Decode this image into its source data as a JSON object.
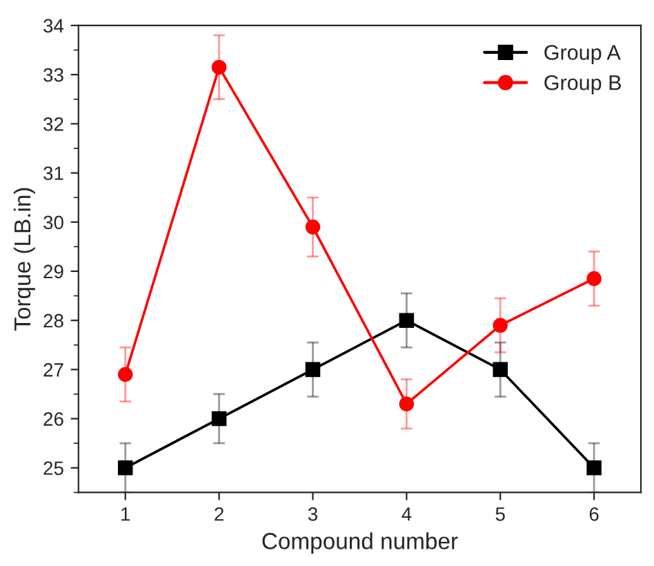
{
  "chart_data": {
    "type": "line",
    "xlabel": "Compound number",
    "ylabel": "Torque (LB.in)",
    "x": [
      1,
      2,
      3,
      4,
      5,
      6
    ],
    "series": [
      {
        "name": "Group A",
        "color": "#000000",
        "marker": "square",
        "values": [
          25,
          26,
          27,
          28,
          27,
          25
        ],
        "errors": [
          0.5,
          0.5,
          0.55,
          0.55,
          0.55,
          0.5
        ]
      },
      {
        "name": "Group B",
        "color": "#ff0000",
        "marker": "circle",
        "values": [
          26.9,
          33.15,
          29.9,
          26.3,
          27.9,
          28.85
        ],
        "errors": [
          0.55,
          0.65,
          0.6,
          0.5,
          0.55,
          0.55
        ]
      }
    ],
    "xlim": [
      0.5,
      6.5
    ],
    "xticks": [
      1,
      2,
      3,
      4,
      5,
      6
    ],
    "ylim": [
      24.5,
      34
    ],
    "yticks": [
      25,
      26,
      27,
      28,
      29,
      30,
      31,
      32,
      33,
      34
    ],
    "grid": false,
    "legend": "top right",
    "line_style": "solid"
  }
}
